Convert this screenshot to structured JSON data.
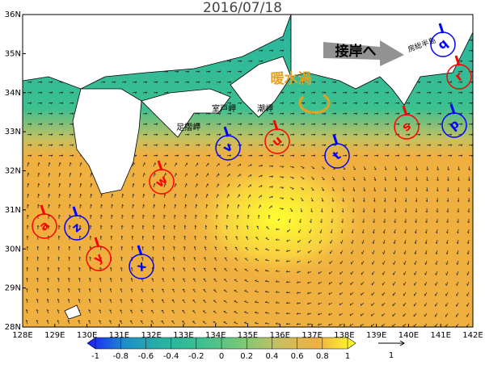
{
  "title": "2016/07/18",
  "map": {
    "lonlim": [
      128,
      142
    ],
    "latlim": [
      28,
      36
    ],
    "lon_ticks": [
      {
        "value": 128,
        "label": "128E"
      },
      {
        "value": 129,
        "label": "129E"
      },
      {
        "value": 130,
        "label": "130E"
      },
      {
        "value": 131,
        "label": "131E"
      },
      {
        "value": 132,
        "label": "132E"
      },
      {
        "value": 133,
        "label": "133E"
      },
      {
        "value": 134,
        "label": "134E"
      },
      {
        "value": 135,
        "label": "135E"
      },
      {
        "value": 136,
        "label": "136E"
      },
      {
        "value": 137,
        "label": "137E"
      },
      {
        "value": 138,
        "label": "138E"
      },
      {
        "value": 139,
        "label": "139E"
      },
      {
        "value": 140,
        "label": "140E"
      },
      {
        "value": 141,
        "label": "141E"
      },
      {
        "value": 142,
        "label": "142E"
      }
    ],
    "lat_ticks": [
      {
        "value": 28,
        "label": "28N"
      },
      {
        "value": 29,
        "label": "29N"
      },
      {
        "value": 30,
        "label": "30N"
      },
      {
        "value": 31,
        "label": "31N"
      },
      {
        "value": 32,
        "label": "32N"
      },
      {
        "value": 33,
        "label": "33N"
      },
      {
        "value": 34,
        "label": "34N"
      },
      {
        "value": 35,
        "label": "35N"
      },
      {
        "value": 36,
        "label": "36N"
      }
    ]
  },
  "annotations": {
    "eddy": "暖水渦",
    "approach": "接岸へ",
    "boso": "房総半島",
    "muroto": "室戸岬",
    "ashizuri": "足摺岬",
    "shiono": "潮岬"
  },
  "stations": [
    {
      "label": "a",
      "color": "red"
    },
    {
      "label": "z",
      "color": "blue"
    },
    {
      "label": "y",
      "color": "red"
    },
    {
      "label": "x",
      "color": "blue"
    },
    {
      "label": "w",
      "color": "red"
    },
    {
      "label": "v",
      "color": "blue"
    },
    {
      "label": "u",
      "color": "red"
    },
    {
      "label": "t",
      "color": "blue"
    },
    {
      "label": "s",
      "color": "red"
    },
    {
      "label": "q",
      "color": "blue"
    },
    {
      "label": "r",
      "color": "red"
    },
    {
      "label": "p",
      "color": "blue"
    }
  ],
  "colorbar": {
    "lim": [
      -1,
      1
    ],
    "ticks": [
      -1,
      -0.8,
      -0.6,
      -0.4,
      -0.2,
      0,
      0.2,
      0.4,
      0.6,
      0.8,
      1
    ],
    "colors": [
      "#1a1aff",
      "#1e90c8",
      "#26b4a0",
      "#3cc090",
      "#78c878",
      "#c8c060",
      "#f0b040",
      "#ffff30"
    ]
  },
  "scale_arrow": {
    "label": "1"
  }
}
